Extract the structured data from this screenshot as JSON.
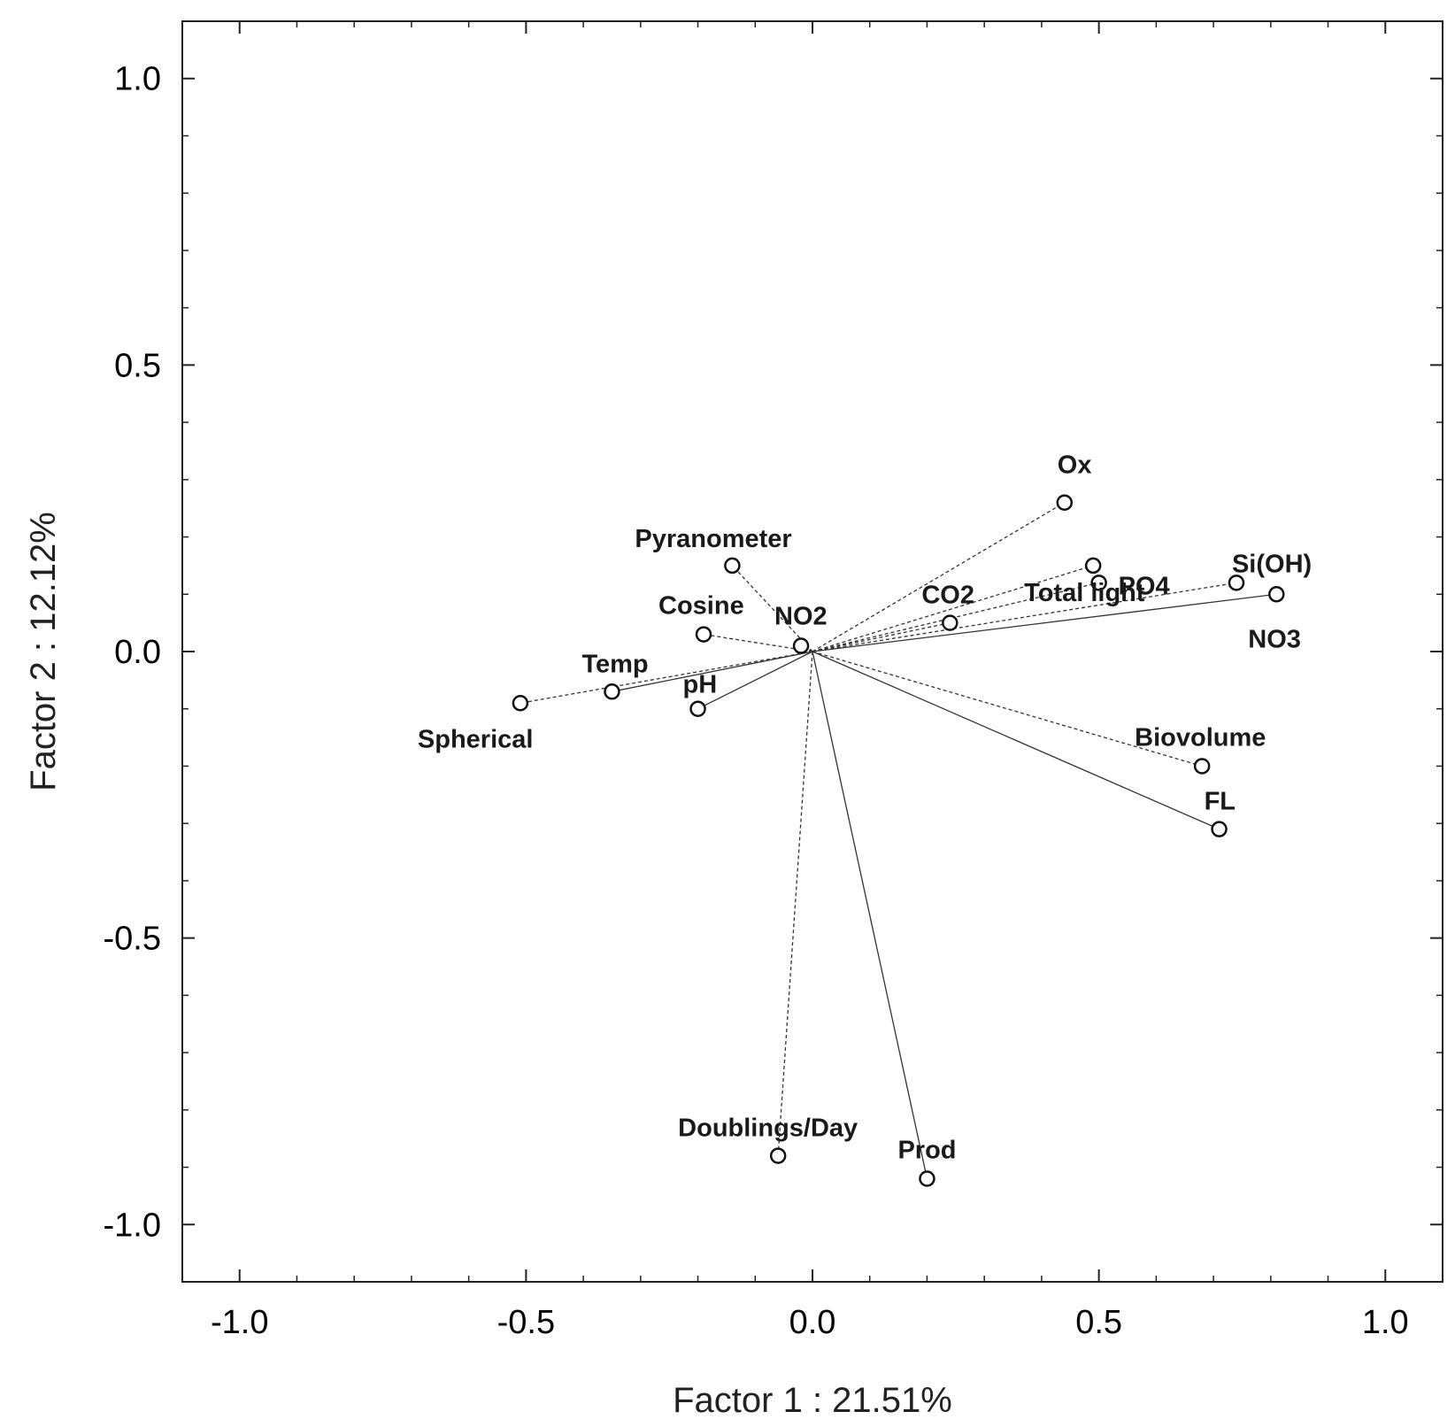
{
  "chart_data": {
    "type": "scatter",
    "title": "",
    "xlabel": "Factor 1 : 21.51%",
    "ylabel": "Factor 2 : 12.12%",
    "xlim": [
      -1.1,
      1.1
    ],
    "ylim": [
      -1.1,
      1.1
    ],
    "x_major_ticks": [
      -1.0,
      -0.5,
      0.0,
      0.5,
      1.0
    ],
    "y_major_ticks": [
      -1.0,
      -0.5,
      0.0,
      0.5,
      1.0
    ],
    "x_tick_labels": [
      "-1.0",
      "-0.5",
      "0.0",
      "0.5",
      "1.0"
    ],
    "y_tick_labels": [
      "-1.0",
      "-0.5",
      "0.0",
      "0.5",
      "1.0"
    ],
    "minor_tick_step": 0.1,
    "grid": false,
    "vector_origin": [
      0.0,
      0.0
    ],
    "points": [
      {
        "label": "Ox",
        "x": 0.44,
        "y": 0.26,
        "line": "dashed"
      },
      {
        "label": "Total light",
        "x": 0.49,
        "y": 0.15,
        "line": "dashed"
      },
      {
        "label": "PO4",
        "x": 0.5,
        "y": 0.12,
        "line": "dashed"
      },
      {
        "label": "Si(OH)",
        "x": 0.74,
        "y": 0.12,
        "line": "dashed"
      },
      {
        "label": "NO3",
        "x": 0.81,
        "y": 0.1,
        "line": "solid"
      },
      {
        "label": "CO2",
        "x": 0.24,
        "y": 0.05,
        "line": "dashed"
      },
      {
        "label": "Pyranometer",
        "x": -0.14,
        "y": 0.15,
        "line": "dashed"
      },
      {
        "label": "Cosine",
        "x": -0.19,
        "y": 0.03,
        "line": "dashed"
      },
      {
        "label": "NO2",
        "x": -0.02,
        "y": 0.01,
        "line": "dashed"
      },
      {
        "label": "Temp",
        "x": -0.35,
        "y": -0.07,
        "line": "solid"
      },
      {
        "label": "pH",
        "x": -0.2,
        "y": -0.1,
        "line": "solid"
      },
      {
        "label": "Spherical",
        "x": -0.51,
        "y": -0.09,
        "line": "dashed"
      },
      {
        "label": "Biovolume",
        "x": 0.68,
        "y": -0.2,
        "line": "dashed"
      },
      {
        "label": "FL",
        "x": 0.71,
        "y": -0.31,
        "line": "solid"
      },
      {
        "label": "Doublings/Day",
        "x": -0.06,
        "y": -0.88,
        "line": "dashed"
      },
      {
        "label": "Prod",
        "x": 0.2,
        "y": -0.92,
        "line": "solid"
      }
    ]
  }
}
